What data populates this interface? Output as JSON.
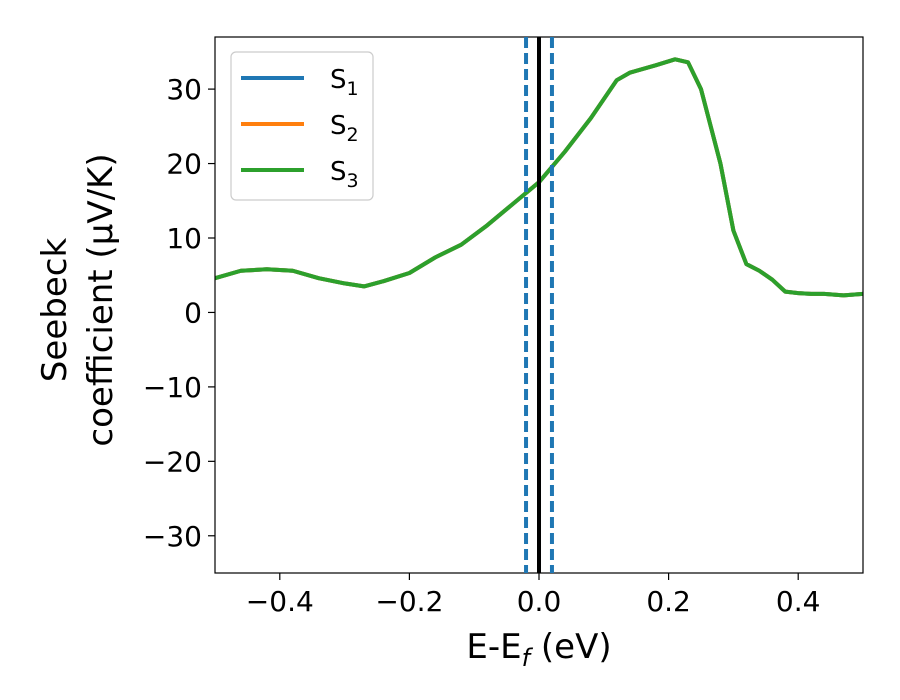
{
  "colors": {
    "S1": "#1f77b4",
    "S2": "#ff7f0e",
    "S3": "#2ca02c",
    "vline_center": "#000000",
    "vline_dashed": "#1f77b4"
  },
  "chart_data": {
    "type": "line",
    "xlabel_main": "E-E",
    "xlabel_sub": "f",
    "xlabel_unit": " (eV)",
    "ylabel_line1": "Seebeck",
    "ylabel_line2": "coefficient  (μV/K)",
    "xlim": [
      -0.5,
      0.5
    ],
    "ylim": [
      -35,
      37
    ],
    "xticks": [
      -0.4,
      -0.2,
      0.0,
      0.2,
      0.4
    ],
    "xtick_labels": [
      "−0.4",
      "−0.2",
      "0.0",
      "0.2",
      "0.4"
    ],
    "yticks": [
      -30,
      -20,
      -10,
      0,
      10,
      20,
      30
    ],
    "ytick_labels": [
      "−30",
      "−20",
      "−10",
      "0",
      "10",
      "20",
      "30"
    ],
    "grid": false,
    "legend_position": "top-left",
    "vertical_lines": [
      {
        "x": -0.02,
        "style": "dashed",
        "color": "#1f77b4"
      },
      {
        "x": 0.0,
        "style": "solid",
        "color": "#000000"
      },
      {
        "x": 0.02,
        "style": "dashed",
        "color": "#1f77b4"
      }
    ],
    "series": [
      {
        "name": "S",
        "sub": "1",
        "color": "#1f77b4",
        "x": [
          -0.5,
          -0.46,
          -0.42,
          -0.38,
          -0.34,
          -0.3,
          -0.27,
          -0.24,
          -0.2,
          -0.16,
          -0.12,
          -0.08,
          -0.04,
          0.0,
          0.04,
          0.08,
          0.12,
          0.14,
          0.18,
          0.21,
          0.23,
          0.25,
          0.28,
          0.3,
          0.32,
          0.34,
          0.36,
          0.38,
          0.4,
          0.42,
          0.44,
          0.47,
          0.5
        ],
        "y": [
          4.6,
          5.6,
          5.8,
          5.6,
          4.6,
          3.9,
          3.5,
          4.2,
          5.3,
          7.4,
          9.1,
          11.7,
          14.6,
          17.5,
          21.6,
          26.1,
          31.2,
          32.2,
          33.2,
          34.0,
          33.6,
          30.0,
          20.0,
          11.0,
          6.5,
          5.6,
          4.4,
          2.8,
          2.6,
          2.5,
          2.5,
          2.3,
          2.5
        ]
      },
      {
        "name": "S",
        "sub": "2",
        "color": "#ff7f0e",
        "x": [
          -0.5,
          -0.46,
          -0.42,
          -0.38,
          -0.34,
          -0.3,
          -0.27,
          -0.24,
          -0.2,
          -0.16,
          -0.12,
          -0.08,
          -0.04,
          0.0,
          0.04,
          0.08,
          0.12,
          0.14,
          0.18,
          0.21,
          0.23,
          0.25,
          0.28,
          0.3,
          0.32,
          0.34,
          0.36,
          0.38,
          0.4,
          0.42,
          0.44,
          0.47,
          0.5
        ],
        "y": [
          4.6,
          5.6,
          5.8,
          5.6,
          4.6,
          3.9,
          3.5,
          4.2,
          5.3,
          7.4,
          9.1,
          11.7,
          14.6,
          17.5,
          21.6,
          26.1,
          31.2,
          32.2,
          33.2,
          34.0,
          33.6,
          30.0,
          20.0,
          11.0,
          6.5,
          5.6,
          4.4,
          2.8,
          2.6,
          2.5,
          2.5,
          2.3,
          2.5
        ]
      },
      {
        "name": "S",
        "sub": "3",
        "color": "#2ca02c",
        "x": [
          -0.5,
          -0.46,
          -0.42,
          -0.38,
          -0.34,
          -0.3,
          -0.27,
          -0.24,
          -0.2,
          -0.16,
          -0.12,
          -0.08,
          -0.04,
          0.0,
          0.04,
          0.08,
          0.12,
          0.14,
          0.18,
          0.21,
          0.23,
          0.25,
          0.28,
          0.3,
          0.32,
          0.34,
          0.36,
          0.38,
          0.4,
          0.42,
          0.44,
          0.47,
          0.5
        ],
        "y": [
          4.6,
          5.6,
          5.8,
          5.6,
          4.6,
          3.9,
          3.5,
          4.2,
          5.3,
          7.4,
          9.1,
          11.7,
          14.6,
          17.5,
          21.6,
          26.1,
          31.2,
          32.2,
          33.2,
          34.0,
          33.6,
          30.0,
          20.0,
          11.0,
          6.5,
          5.6,
          4.4,
          2.8,
          2.6,
          2.5,
          2.5,
          2.3,
          2.5
        ]
      }
    ]
  }
}
